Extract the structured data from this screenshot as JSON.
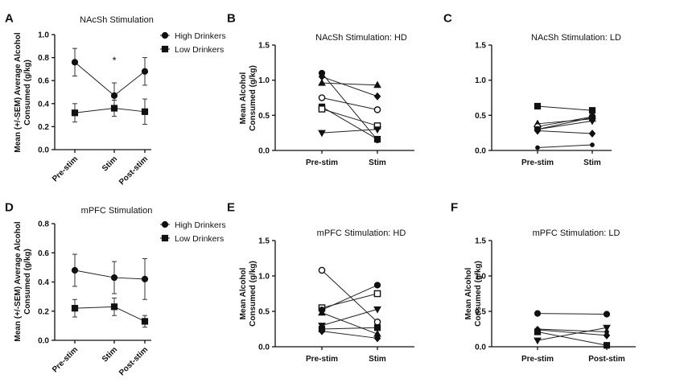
{
  "chart_data": [
    {
      "panel": "A",
      "type": "line",
      "title": "NAcSh Stimulation",
      "ylabel": "Mean (+/-SEM) Average Alcohol Consumed (g/kg)",
      "categories": [
        "Pre-stim",
        "Stim",
        "Post-stim"
      ],
      "ylim": [
        0,
        1.0
      ],
      "yticks": [
        "0.0",
        "0.2",
        "0.4",
        "0.6",
        "0.8",
        "1.0"
      ],
      "legend": "top-right",
      "series": [
        {
          "name": "High Drinkers",
          "marker": "circle",
          "values": [
            0.76,
            0.47,
            0.68
          ],
          "sem": [
            0.12,
            0.11,
            0.12
          ]
        },
        {
          "name": "Low Drinkers",
          "marker": "square",
          "values": [
            0.32,
            0.36,
            0.33
          ],
          "sem": [
            0.08,
            0.07,
            0.11
          ]
        }
      ],
      "annotations": [
        {
          "text": "*",
          "category": "Stim",
          "y": 0.78
        }
      ]
    },
    {
      "panel": "B",
      "type": "line",
      "title": "NAcSh Stimulation: HD",
      "ylabel": "Mean Alcohol Consumed (g/kg)",
      "categories": [
        "Pre-stim",
        "Stim"
      ],
      "ylim": [
        0,
        1.5
      ],
      "yticks": [
        "0.0",
        "0.5",
        "1.0",
        "1.5"
      ],
      "series": [
        {
          "marker": "circle",
          "values": [
            1.1,
            0.15
          ]
        },
        {
          "marker": "diamond",
          "values": [
            1.05,
            0.77
          ]
        },
        {
          "marker": "triangle-up",
          "values": [
            0.96,
            0.93
          ]
        },
        {
          "marker": "circle-open",
          "values": [
            0.75,
            0.58
          ]
        },
        {
          "marker": "square",
          "values": [
            0.62,
            0.16
          ]
        },
        {
          "marker": "square-open",
          "values": [
            0.59,
            0.35
          ]
        },
        {
          "marker": "triangle-down",
          "values": [
            0.25,
            0.3
          ]
        }
      ]
    },
    {
      "panel": "C",
      "type": "line",
      "title": "NAcSh Stimulation: LD",
      "ylabel": "",
      "categories": [
        "Pre-stim",
        "Stim"
      ],
      "ylim": [
        0,
        1.5
      ],
      "yticks": [
        "0.0",
        "0.5",
        "1.0",
        "1.5"
      ],
      "series": [
        {
          "marker": "square",
          "values": [
            0.63,
            0.57
          ]
        },
        {
          "marker": "triangle-up",
          "values": [
            0.38,
            0.45
          ]
        },
        {
          "marker": "circle-open",
          "values": [
            0.34,
            0.48
          ]
        },
        {
          "marker": "circle",
          "values": [
            0.3,
            0.47
          ]
        },
        {
          "marker": "triangle-down",
          "values": [
            0.3,
            0.42
          ]
        },
        {
          "marker": "diamond",
          "values": [
            0.28,
            0.24
          ]
        },
        {
          "marker": "circle-small",
          "values": [
            0.04,
            0.08
          ]
        }
      ]
    },
    {
      "panel": "D",
      "type": "line",
      "title": "mPFC Stimulation",
      "ylabel": "Mean (+/-SEM) Average Alcohol Consumed (g/kg)",
      "categories": [
        "Pre-stim",
        "Stim",
        "Post-stim"
      ],
      "ylim": [
        0,
        0.8
      ],
      "yticks": [
        "0.0",
        "0.2",
        "0.4",
        "0.6",
        "0.8"
      ],
      "legend": "top-right",
      "series": [
        {
          "name": "High Drinkers",
          "marker": "circle",
          "values": [
            0.48,
            0.43,
            0.42
          ],
          "sem": [
            0.11,
            0.11,
            0.14
          ]
        },
        {
          "name": "Low Drinkers",
          "marker": "square",
          "values": [
            0.22,
            0.23,
            0.13
          ],
          "sem": [
            0.06,
            0.06,
            0.04
          ]
        }
      ]
    },
    {
      "panel": "E",
      "type": "line",
      "title": "mPFC Stimulation: HD",
      "ylabel": "Mean Alcohol Consumed (g/kg)",
      "categories": [
        "Pre-stim",
        "Stim"
      ],
      "ylim": [
        0,
        1.5
      ],
      "yticks": [
        "0.0",
        "0.5",
        "1.0",
        "1.5"
      ],
      "series": [
        {
          "marker": "circle-open",
          "values": [
            1.08,
            0.35
          ]
        },
        {
          "marker": "square-open",
          "values": [
            0.55,
            0.75
          ]
        },
        {
          "marker": "circle",
          "values": [
            0.52,
            0.87
          ]
        },
        {
          "marker": "triangle-up",
          "values": [
            0.48,
            0.18
          ]
        },
        {
          "marker": "triangle-down",
          "values": [
            0.3,
            0.53
          ]
        },
        {
          "marker": "square",
          "values": [
            0.25,
            0.27
          ]
        },
        {
          "marker": "diamond",
          "values": [
            0.22,
            0.12
          ]
        }
      ]
    },
    {
      "panel": "F",
      "type": "line",
      "title": "mPFC Stimulation: LD",
      "ylabel": "Mean Alcohol Consumed (g/kg)",
      "categories": [
        "Pre-stim",
        "Post-stim"
      ],
      "ylim": [
        0,
        1.5
      ],
      "yticks": [
        "0.0",
        "0.5",
        "1.0",
        "1.5"
      ],
      "series": [
        {
          "marker": "circle",
          "values": [
            0.47,
            0.46
          ]
        },
        {
          "marker": "circle-small",
          "values": [
            0.25,
            0.21
          ]
        },
        {
          "marker": "diamond",
          "values": [
            0.24,
            0.16
          ]
        },
        {
          "marker": "square",
          "values": [
            0.21,
            0.02
          ]
        },
        {
          "marker": "triangle-down",
          "values": [
            0.09,
            0.27
          ]
        }
      ]
    }
  ]
}
